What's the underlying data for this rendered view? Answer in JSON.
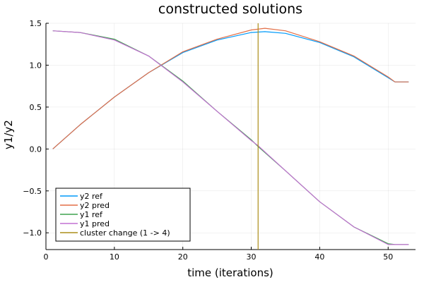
{
  "chart_data": {
    "type": "line",
    "title": "constructed solutions",
    "xlabel": "time (iterations)",
    "ylabel": "y1/y2",
    "xlim": [
      0,
      54
    ],
    "ylim": [
      -1.2,
      1.5
    ],
    "x_ticks": [
      0,
      10,
      20,
      30,
      40,
      50
    ],
    "y_ticks": [
      -1.0,
      -0.5,
      0.0,
      0.5,
      1.0,
      1.5
    ],
    "x_tick_labels": [
      "0",
      "10",
      "20",
      "30",
      "40",
      "50"
    ],
    "y_tick_labels": [
      "−1.0",
      "−0.5",
      "0.0",
      "0.5",
      "1.0",
      "1.5"
    ],
    "grid": true,
    "legend_position": "bottom-left",
    "series": [
      {
        "name": "y2 ref",
        "color": "#009AFA",
        "x": [
          1,
          5,
          10,
          15,
          20,
          25,
          30,
          32,
          35,
          40,
          45,
          50,
          51,
          53
        ],
        "y": [
          0.0,
          0.29,
          0.62,
          0.91,
          1.15,
          1.3,
          1.39,
          1.4,
          1.38,
          1.27,
          1.1,
          0.85,
          0.8,
          0.8
        ]
      },
      {
        "name": "y2 pred",
        "color": "#E36F47",
        "x": [
          1,
          5,
          10,
          15,
          20,
          25,
          30,
          32,
          35,
          40,
          45,
          50,
          51,
          53
        ],
        "y": [
          0.0,
          0.29,
          0.62,
          0.91,
          1.16,
          1.31,
          1.42,
          1.44,
          1.41,
          1.28,
          1.11,
          0.86,
          0.8,
          0.8
        ]
      },
      {
        "name": "y1 ref",
        "color": "#3EA44E",
        "x": [
          1,
          5,
          10,
          15,
          20,
          25,
          30,
          31,
          35,
          40,
          45,
          50,
          51,
          53
        ],
        "y": [
          1.41,
          1.39,
          1.31,
          1.11,
          0.81,
          0.45,
          0.11,
          0.03,
          -0.26,
          -0.63,
          -0.93,
          -1.13,
          -1.14,
          -1.14
        ]
      },
      {
        "name": "y1 pred",
        "color": "#C271D2",
        "x": [
          1,
          5,
          10,
          15,
          20,
          25,
          30,
          31,
          35,
          40,
          45,
          50,
          51,
          53
        ],
        "y": [
          1.41,
          1.39,
          1.3,
          1.11,
          0.8,
          0.45,
          0.1,
          0.04,
          -0.26,
          -0.63,
          -0.93,
          -1.14,
          -1.14,
          -1.14
        ]
      }
    ],
    "vline": {
      "name": "cluster change (1 -> 4)",
      "color": "#AC8D18",
      "x": 31
    }
  }
}
